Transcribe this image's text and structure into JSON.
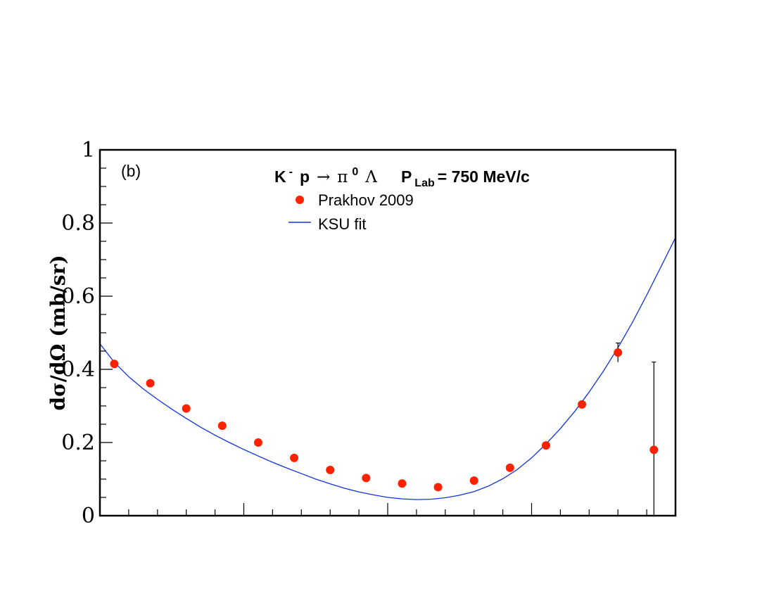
{
  "chart_data": {
    "type": "scatter",
    "panel_label": "(b)",
    "title": {
      "reaction_k": "K",
      "reaction_k_sup": "-",
      "reaction_p": "p",
      "reaction_arrow": "→",
      "reaction_pi": "π",
      "reaction_pi_sup": "0",
      "reaction_lambda": "Λ",
      "plab_p": "P",
      "plab_sub": "Lab",
      "plab_value": "= 750 MeV/c"
    },
    "ylabel": "dσ/dΩ (mb/sr)",
    "xlim": [
      -1,
      1
    ],
    "ylim": [
      0,
      1
    ],
    "y_ticks": [
      "0",
      "0.2",
      "0.4",
      "0.6",
      "0.8",
      "1"
    ],
    "series": [
      {
        "name": "Prakhov 2009",
        "kind": "points",
        "color": "#ff2200",
        "x": [
          -0.95,
          -0.825,
          -0.7,
          -0.575,
          -0.45,
          -0.325,
          -0.2,
          -0.075,
          0.05,
          0.175,
          0.3,
          0.425,
          0.55,
          0.675,
          0.8,
          0.925
        ],
        "y": [
          0.415,
          0.362,
          0.293,
          0.246,
          0.2,
          0.158,
          0.125,
          0.103,
          0.088,
          0.078,
          0.096,
          0.131,
          0.192,
          0.304,
          0.446,
          0.18
        ],
        "yerr": [
          0.005,
          0.005,
          0.004,
          0.004,
          0.004,
          0.003,
          0.003,
          0.003,
          0.003,
          0.003,
          0.003,
          0.004,
          0.005,
          0.006,
          0.026,
          0.24
        ]
      },
      {
        "name": "KSU fit",
        "kind": "line",
        "color": "#1133dd",
        "x": [
          -1,
          -0.95,
          -0.9,
          -0.85,
          -0.8,
          -0.75,
          -0.7,
          -0.65,
          -0.6,
          -0.55,
          -0.5,
          -0.45,
          -0.4,
          -0.35,
          -0.3,
          -0.25,
          -0.2,
          -0.15,
          -0.1,
          -0.05,
          0,
          0.05,
          0.1,
          0.15,
          0.2,
          0.25,
          0.3,
          0.35,
          0.4,
          0.45,
          0.5,
          0.55,
          0.6,
          0.65,
          0.7,
          0.75,
          0.8,
          0.85,
          0.9,
          0.95,
          1
        ],
        "y": [
          0.47,
          0.419,
          0.38,
          0.347,
          0.318,
          0.291,
          0.266,
          0.242,
          0.22,
          0.2,
          0.181,
          0.163,
          0.146,
          0.13,
          0.115,
          0.1,
          0.087,
          0.075,
          0.065,
          0.057,
          0.05,
          0.046,
          0.044,
          0.045,
          0.049,
          0.056,
          0.066,
          0.081,
          0.101,
          0.126,
          0.158,
          0.196,
          0.238,
          0.285,
          0.338,
          0.396,
          0.459,
          0.528,
          0.603,
          0.681,
          0.76
        ]
      }
    ]
  }
}
